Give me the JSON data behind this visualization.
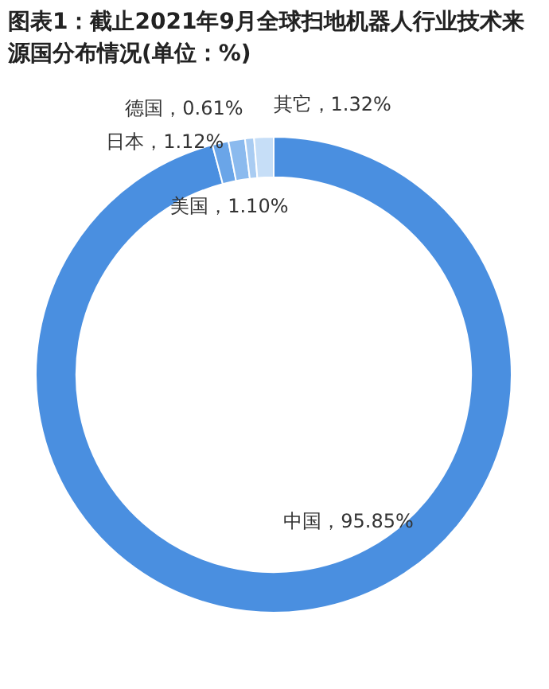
{
  "chart_data": {
    "type": "donut",
    "title": "图表1：截止2021年9月全球扫地机器人行业技术来源国分布情况(单位：%)",
    "categories": [
      "中国",
      "美国",
      "日本",
      "德国",
      "其它"
    ],
    "values": [
      95.85,
      1.1,
      1.12,
      0.61,
      1.32
    ],
    "value_labels": [
      "95.85%",
      "1.10%",
      "1.12%",
      "0.61%",
      "1.32%"
    ],
    "colors": [
      "#4a8fe0",
      "#6aa5e8",
      "#8bbaee",
      "#a9ccf2",
      "#c6def7"
    ],
    "legend": false
  }
}
